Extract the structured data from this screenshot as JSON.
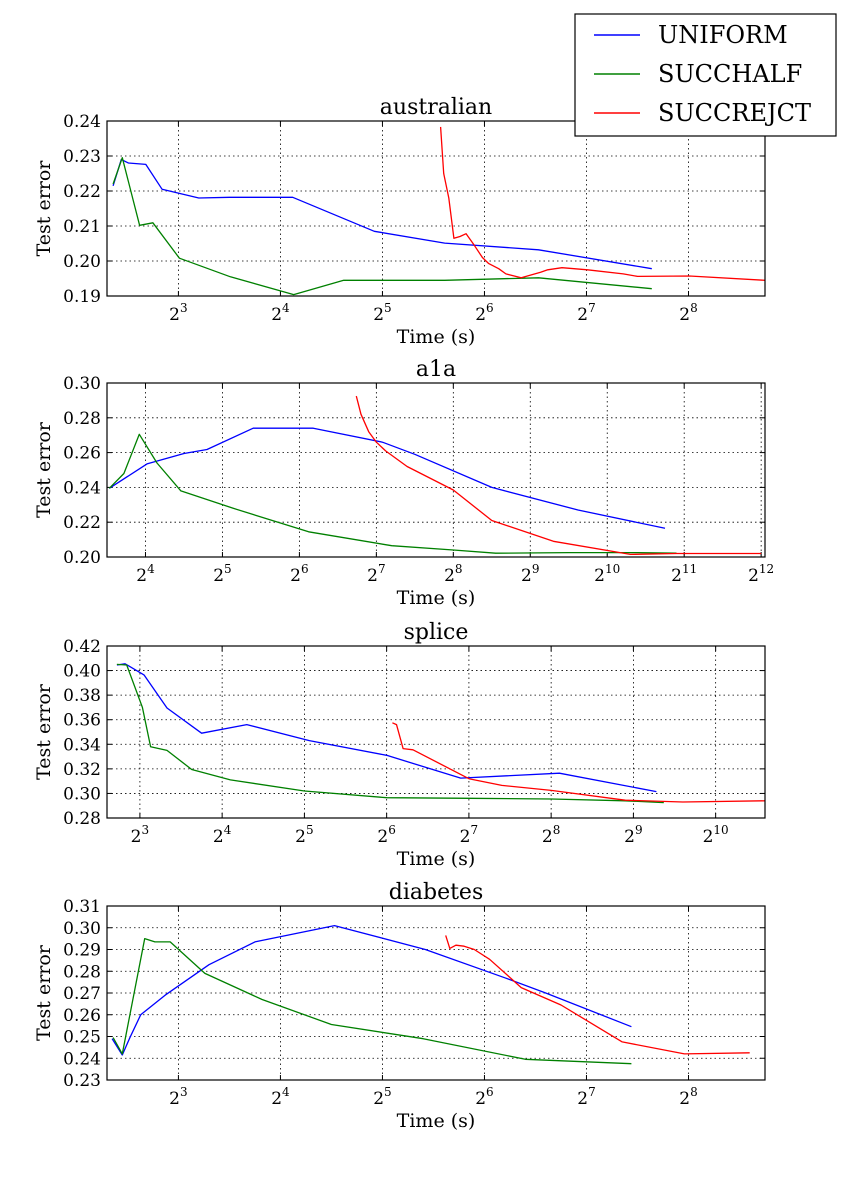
{
  "chart_data": [
    {
      "type": "line",
      "title": "australian",
      "xlabel": "Time (s)",
      "ylabel": "Test error",
      "xscale": "log2",
      "xlim_log2": [
        2.3,
        8.75
      ],
      "ylim": [
        0.19,
        0.24
      ],
      "grid": true,
      "xticks": [
        {
          "log2": 3,
          "base": "2",
          "exp": "3"
        },
        {
          "log2": 4,
          "base": "2",
          "exp": "4"
        },
        {
          "log2": 5,
          "base": "2",
          "exp": "5"
        },
        {
          "log2": 6,
          "base": "2",
          "exp": "6"
        },
        {
          "log2": 7,
          "base": "2",
          "exp": "7"
        },
        {
          "log2": 8,
          "base": "2",
          "exp": "8"
        }
      ],
      "yticks": [
        {
          "value": 0.19,
          "label": "0.19"
        },
        {
          "value": 0.2,
          "label": "0.20"
        },
        {
          "value": 0.21,
          "label": "0.21"
        },
        {
          "value": 0.22,
          "label": "0.22"
        },
        {
          "value": 0.23,
          "label": "0.23"
        },
        {
          "value": 0.24,
          "label": "0.24"
        }
      ],
      "series": [
        {
          "name": "UNIFORM",
          "color": "#0000ff",
          "log2x": [
            2.36,
            2.44,
            2.51,
            2.68,
            2.84,
            3.2,
            3.5,
            4.12,
            4.92,
            5.61,
            6.53,
            7.64
          ],
          "y": [
            0.2215,
            0.229,
            0.228,
            0.2276,
            0.2205,
            0.218,
            0.2182,
            0.2182,
            0.2085,
            0.2051,
            0.2032,
            0.1978
          ]
        },
        {
          "name": "SUCCHALF",
          "color": "#008000",
          "log2x": [
            2.36,
            2.45,
            2.62,
            2.75,
            3.01,
            3.51,
            4.13,
            4.62,
            5.61,
            6.53,
            7.64
          ],
          "y": [
            0.222,
            0.2295,
            0.2102,
            0.2109,
            0.2008,
            0.1955,
            0.1904,
            0.1945,
            0.1945,
            0.1952,
            0.1921
          ]
        },
        {
          "name": "SUCCREJCT",
          "color": "#ff0000",
          "log2x": [
            5.57,
            5.6,
            5.65,
            5.7,
            5.76,
            5.82,
            5.9,
            5.98,
            6.04,
            6.14,
            6.21,
            6.36,
            6.55,
            6.62,
            6.76,
            7.01,
            7.36,
            7.5,
            8.01,
            8.75
          ],
          "y": [
            0.2383,
            0.225,
            0.218,
            0.2065,
            0.207,
            0.2078,
            0.2045,
            0.201,
            0.1993,
            0.1978,
            0.1963,
            0.1952,
            0.1968,
            0.1975,
            0.1981,
            0.1975,
            0.1963,
            0.1956,
            0.1957,
            0.1945
          ]
        }
      ]
    },
    {
      "type": "line",
      "title": "a1a",
      "xlabel": "Time (s)",
      "ylabel": "Test error",
      "xscale": "log2",
      "xlim_log2": [
        3.5,
        12.05
      ],
      "ylim": [
        0.2,
        0.3
      ],
      "grid": true,
      "xticks": [
        {
          "log2": 4,
          "base": "2",
          "exp": "4"
        },
        {
          "log2": 5,
          "base": "2",
          "exp": "5"
        },
        {
          "log2": 6,
          "base": "2",
          "exp": "6"
        },
        {
          "log2": 7,
          "base": "2",
          "exp": "7"
        },
        {
          "log2": 8,
          "base": "2",
          "exp": "8"
        },
        {
          "log2": 9,
          "base": "2",
          "exp": "9"
        },
        {
          "log2": 10,
          "base": "2",
          "exp": "10"
        },
        {
          "log2": 11,
          "base": "2",
          "exp": "11"
        },
        {
          "log2": 12,
          "base": "2",
          "exp": "12"
        }
      ],
      "yticks": [
        {
          "value": 0.2,
          "label": "0.20"
        },
        {
          "value": 0.22,
          "label": "0.22"
        },
        {
          "value": 0.24,
          "label": "0.24"
        },
        {
          "value": 0.26,
          "label": "0.26"
        },
        {
          "value": 0.28,
          "label": "0.28"
        },
        {
          "value": 0.3,
          "label": "0.30"
        }
      ],
      "series": [
        {
          "name": "UNIFORM",
          "color": "#0000ff",
          "log2x": [
            3.53,
            4.02,
            4.5,
            4.8,
            5.4,
            6.18,
            7.08,
            7.5,
            8.5,
            9.62,
            10.75
          ],
          "y": [
            0.2395,
            0.2535,
            0.2595,
            0.2618,
            0.274,
            0.274,
            0.266,
            0.259,
            0.24,
            0.227,
            0.2165
          ]
        },
        {
          "name": "SUCCHALF",
          "color": "#008000",
          "log2x": [
            3.53,
            3.72,
            3.92,
            4.15,
            4.46,
            5.14,
            6.12,
            7.2,
            8.0,
            8.55,
            9.5,
            10.4,
            10.9
          ],
          "y": [
            0.2395,
            0.248,
            0.2705,
            0.254,
            0.238,
            0.228,
            0.2145,
            0.2065,
            0.204,
            0.2022,
            0.2025,
            0.2025,
            0.2022
          ]
        },
        {
          "name": "SUCCREJCT",
          "color": "#ff0000",
          "log2x": [
            6.74,
            6.8,
            6.9,
            7.0,
            7.12,
            7.4,
            8.0,
            8.5,
            9.3,
            10.3,
            10.9,
            12.0
          ],
          "y": [
            0.2925,
            0.282,
            0.272,
            0.266,
            0.261,
            0.252,
            0.2385,
            0.221,
            0.209,
            0.2015,
            0.202,
            0.202
          ]
        }
      ]
    },
    {
      "type": "line",
      "title": "splice",
      "xlabel": "Time (s)",
      "ylabel": "Test error",
      "xscale": "log2",
      "xlim_log2": [
        2.6,
        10.6
      ],
      "ylim": [
        0.28,
        0.42
      ],
      "grid": true,
      "xticks": [
        {
          "log2": 3,
          "base": "2",
          "exp": "3"
        },
        {
          "log2": 4,
          "base": "2",
          "exp": "4"
        },
        {
          "log2": 5,
          "base": "2",
          "exp": "5"
        },
        {
          "log2": 6,
          "base": "2",
          "exp": "6"
        },
        {
          "log2": 7,
          "base": "2",
          "exp": "7"
        },
        {
          "log2": 8,
          "base": "2",
          "exp": "8"
        },
        {
          "log2": 9,
          "base": "2",
          "exp": "9"
        },
        {
          "log2": 10,
          "base": "2",
          "exp": "10"
        }
      ],
      "yticks": [
        {
          "value": 0.28,
          "label": "0.28"
        },
        {
          "value": 0.3,
          "label": "0.30"
        },
        {
          "value": 0.32,
          "label": "0.32"
        },
        {
          "value": 0.34,
          "label": "0.34"
        },
        {
          "value": 0.36,
          "label": "0.36"
        },
        {
          "value": 0.38,
          "label": "0.38"
        },
        {
          "value": 0.4,
          "label": "0.40"
        },
        {
          "value": 0.42,
          "label": "0.42"
        }
      ],
      "series": [
        {
          "name": "UNIFORM",
          "color": "#0000ff",
          "log2x": [
            2.72,
            2.82,
            3.05,
            3.33,
            3.75,
            4.3,
            5.06,
            6.0,
            6.9,
            8.1,
            9.28
          ],
          "y": [
            0.4045,
            0.4055,
            0.3965,
            0.3695,
            0.349,
            0.356,
            0.343,
            0.331,
            0.3125,
            0.3165,
            0.3015
          ]
        },
        {
          "name": "SUCCHALF",
          "color": "#008000",
          "log2x": [
            2.72,
            2.84,
            3.03,
            3.13,
            3.33,
            3.63,
            4.1,
            5.0,
            6.0,
            7.0,
            8.0,
            8.9,
            9.37
          ],
          "y": [
            0.405,
            0.4045,
            0.37,
            0.338,
            0.335,
            0.3195,
            0.311,
            0.302,
            0.2965,
            0.296,
            0.2955,
            0.294,
            0.2925
          ]
        },
        {
          "name": "SUCCREJCT",
          "color": "#ff0000",
          "log2x": [
            6.07,
            6.12,
            6.2,
            6.32,
            7.0,
            7.4,
            8.0,
            8.9,
            9.6,
            10.6
          ],
          "y": [
            0.3575,
            0.356,
            0.3365,
            0.3355,
            0.312,
            0.3065,
            0.3025,
            0.2945,
            0.293,
            0.294
          ]
        }
      ]
    },
    {
      "type": "line",
      "title": "diabetes",
      "xlabel": "Time (s)",
      "ylabel": "Test error",
      "xscale": "log2",
      "xlim_log2": [
        2.3,
        8.75
      ],
      "ylim": [
        0.23,
        0.31
      ],
      "grid": true,
      "xticks": [
        {
          "log2": 3,
          "base": "2",
          "exp": "3"
        },
        {
          "log2": 4,
          "base": "2",
          "exp": "4"
        },
        {
          "log2": 5,
          "base": "2",
          "exp": "5"
        },
        {
          "log2": 6,
          "base": "2",
          "exp": "6"
        },
        {
          "log2": 7,
          "base": "2",
          "exp": "7"
        },
        {
          "log2": 8,
          "base": "2",
          "exp": "8"
        }
      ],
      "yticks": [
        {
          "value": 0.23,
          "label": "0.23"
        },
        {
          "value": 0.24,
          "label": "0.24"
        },
        {
          "value": 0.25,
          "label": "0.25"
        },
        {
          "value": 0.26,
          "label": "0.26"
        },
        {
          "value": 0.27,
          "label": "0.27"
        },
        {
          "value": 0.28,
          "label": "0.28"
        },
        {
          "value": 0.29,
          "label": "0.29"
        },
        {
          "value": 0.3,
          "label": "0.30"
        },
        {
          "value": 0.31,
          "label": "0.31"
        }
      ],
      "series": [
        {
          "name": "UNIFORM",
          "color": "#0000ff",
          "log2x": [
            2.35,
            2.45,
            2.52,
            2.63,
            2.87,
            3.3,
            3.75,
            4.53,
            5.42,
            6.2,
            6.6,
            7.44
          ],
          "y": [
            0.249,
            0.2415,
            0.249,
            0.26,
            0.269,
            0.283,
            0.2935,
            0.301,
            0.29,
            0.277,
            0.27,
            0.2545
          ]
        },
        {
          "name": "SUCCHALF",
          "color": "#008000",
          "log2x": [
            2.36,
            2.45,
            2.67,
            2.77,
            2.92,
            3.26,
            3.82,
            4.5,
            5.4,
            6.4,
            7.44
          ],
          "y": [
            0.2495,
            0.242,
            0.295,
            0.2935,
            0.2935,
            0.279,
            0.267,
            0.2555,
            0.249,
            0.2395,
            0.2375
          ]
        },
        {
          "name": "SUCCREJCT",
          "color": "#ff0000",
          "log2x": [
            5.62,
            5.66,
            5.72,
            5.8,
            5.9,
            6.05,
            6.36,
            6.75,
            7.35,
            7.96,
            8.6
          ],
          "y": [
            0.2965,
            0.2905,
            0.292,
            0.2915,
            0.29,
            0.2855,
            0.2725,
            0.2645,
            0.2475,
            0.242,
            0.2425
          ]
        }
      ]
    }
  ],
  "legend": {
    "position": "top-right",
    "entries": [
      {
        "label": "UNIFORM",
        "color": "#0000ff"
      },
      {
        "label": "SUCCHALF",
        "color": "#008000"
      },
      {
        "label": "SUCCREJCT",
        "color": "#ff0000"
      }
    ]
  }
}
